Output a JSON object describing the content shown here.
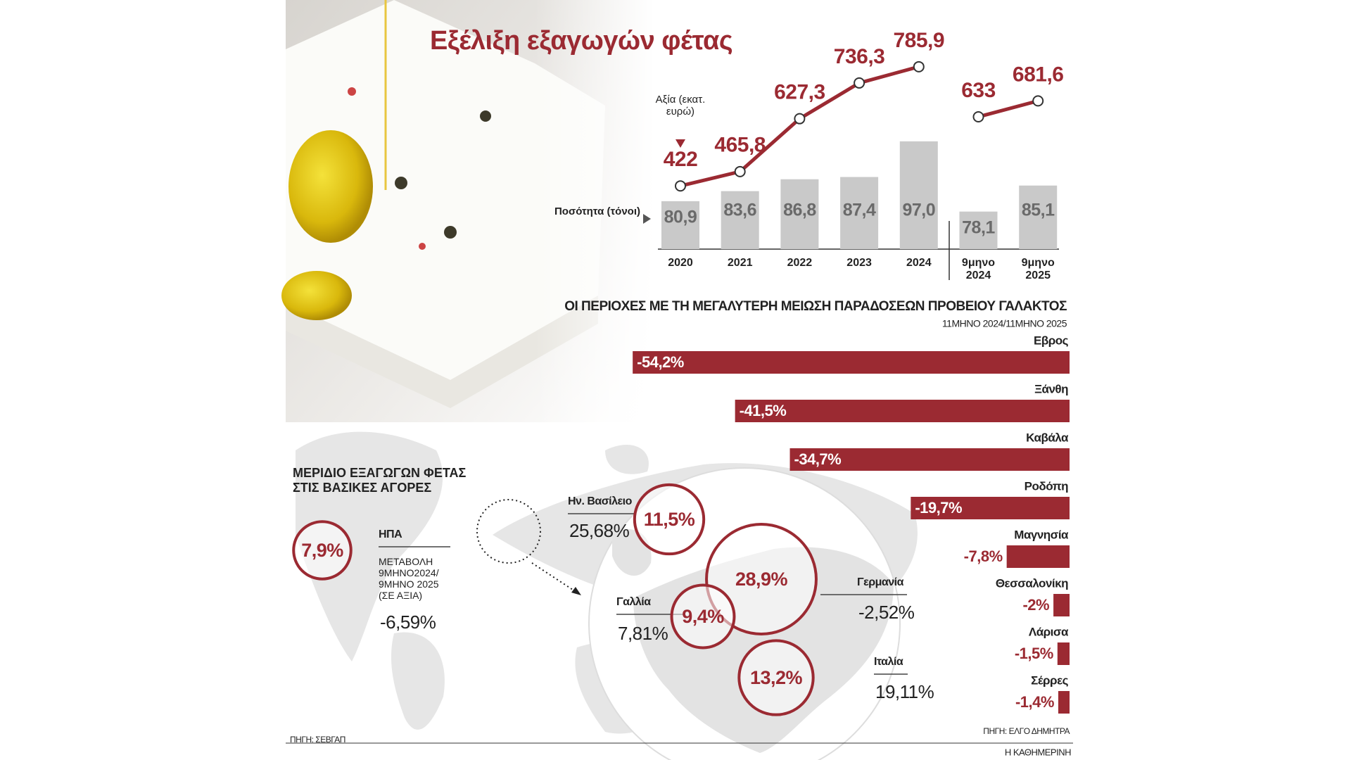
{
  "title": "Εξέλιξη εξαγωγών φέτας",
  "footer": "Η ΚΑΘΗΜΕΡΙΝΗ",
  "chart_data": [
    {
      "type": "bar-line",
      "categories": [
        "2020",
        "2021",
        "2022",
        "2023",
        "2024",
        "9μηνο 2024",
        "9μηνο 2025"
      ],
      "ylim": [
        68,
        100
      ],
      "y2lim": [
        300,
        850
      ],
      "series": [
        {
          "name": "Ποσότητα (τόνοι)",
          "type": "bar",
          "color": "#c9c9c9",
          "values": [
            80.9,
            83.6,
            86.8,
            87.4,
            97.0,
            78.1,
            85.1
          ],
          "value_labels": [
            "80,9",
            "83,6",
            "86,8",
            "87,4",
            "97,0",
            "78,1",
            "85,1"
          ]
        },
        {
          "name": "Αξία (εκατ. ευρώ)",
          "type": "line",
          "axis": "y2",
          "color": "#9b2a32",
          "values": [
            422,
            465.8,
            627.3,
            736.3,
            785.9,
            null,
            null
          ],
          "value_labels": [
            "422",
            "465,8",
            "627,3",
            "736,3",
            "785,9",
            null,
            null
          ]
        },
        {
          "type": "line",
          "axis": "y2",
          "color": "#9b2a32",
          "values": [
            null,
            null,
            null,
            null,
            null,
            633,
            681.6
          ],
          "value_labels": [
            null,
            null,
            null,
            null,
            null,
            "633",
            "681,6"
          ]
        }
      ]
    },
    {
      "type": "hbar",
      "title": "ΟΙ ΠΕΡΙΟΧΕΣ ΜΕ ΤΗ ΜΕΓΑΛΥΤΕΡΗ ΜΕΙΩΣΗ ΠΑΡΑΔΟΣΕΩΝ ΠΡΟΒΕΙΟΥ ΓΑΛΑΚΤΟΣ",
      "subtitle": "11ΜΗΝΟ 2024/11ΜΗΝΟ 2025",
      "categories": [
        "Εβρος",
        "Ξάνθη",
        "Καβάλα",
        "Ροδόπη",
        "Μαγνησία",
        "Θεσσαλονίκη",
        "Λάρισα",
        "Σέρρες"
      ],
      "values": [
        -54.2,
        -41.5,
        -34.7,
        -19.7,
        -7.8,
        -2,
        -1.5,
        -1.4
      ],
      "value_labels": [
        "-54,2%",
        "-41,5%",
        "-34,7%",
        "-19,7%",
        "-7,8%",
        "-2%",
        "-1,5%",
        "-1,4%"
      ],
      "color": "#9b2a32",
      "xlim": [
        -55,
        0
      ],
      "source": "ΠΗΓΗ: ΕΛΓΟ ΔΗΜΗΤΡΑ"
    },
    {
      "type": "bubble-map",
      "title": "ΜΕΡΙΔΙΟ ΕΞΑΓΩΓΩΝ ΦΕΤΑΣ ΣΤΙΣ ΒΑΣΙΚΕΣ ΑΓΟΡΕΣ",
      "categories": [
        "ΗΠΑ",
        "Ην. Βασίλειο",
        "Γερμανία",
        "Γαλλία",
        "Ιταλία"
      ],
      "color": "#9b2a32",
      "series": [
        {
          "values": [
            7.9,
            11.5,
            28.9,
            9.4,
            13.2
          ],
          "value_labels": [
            "7,9%",
            "11,5%",
            "28,9%",
            "9,4%",
            "13,2%"
          ]
        },
        {
          "name": "ΜΕΤΑΒΟΛΗ 9ΜΗΝΟ2024/ 9ΜΗΝΟ 2025 (ΣΕ ΑΞΙΑ)",
          "values": [
            -6.59,
            25.68,
            -2.52,
            7.81,
            19.11
          ],
          "value_labels": [
            "-6,59%",
            "25,68%",
            "-2,52%",
            "7,81%",
            "19,11%"
          ]
        }
      ],
      "source": "ΠΗΓΗ: ΣΕΒΓΑΠ"
    }
  ]
}
